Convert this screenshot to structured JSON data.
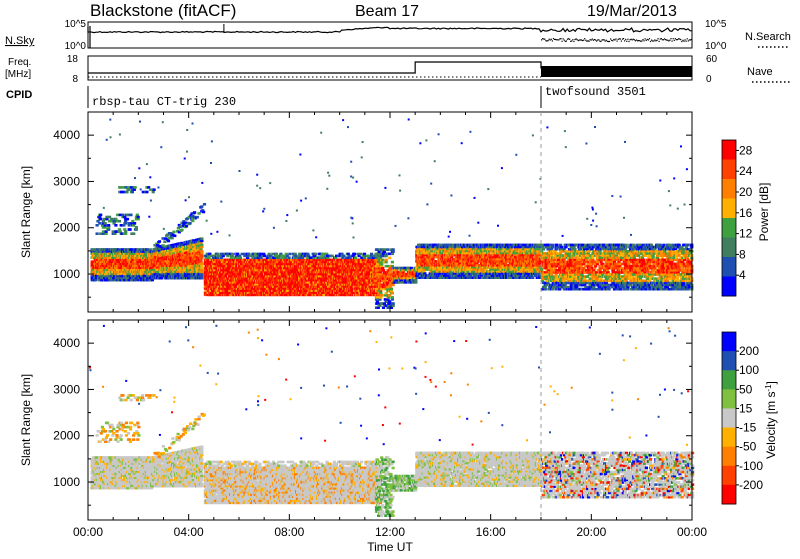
{
  "header": {
    "radar": "Blackstone (fitACF)",
    "beam": "Beam 17",
    "date": "19/Mar/2013"
  },
  "top_panel": {
    "left_label": "N.Sky",
    "left_ticks": [
      "10^5",
      "10^0"
    ],
    "right_ticks": [
      "10^5",
      "10^0"
    ],
    "right_label": "N.Search"
  },
  "freq_panel": {
    "left_label_1": "Freq.",
    "left_label_2": "[MHz]",
    "left_ticks": [
      "18",
      "8"
    ],
    "right_ticks": [
      "60",
      "0"
    ],
    "right_label": "Nave"
  },
  "cpid_panel": {
    "label": "CPID",
    "programs": [
      "rbsp-tau CT-trig 230",
      "twofsound 3501"
    ]
  },
  "colors": {
    "power": [
      "#0000ff",
      "#1f4fb0",
      "#3f7f5f",
      "#3fa040",
      "#ffb000",
      "#ff8000",
      "#ff4000",
      "#ff0000"
    ],
    "velocity": [
      "#ff0000",
      "#ff4000",
      "#ff8000",
      "#ffb000",
      "#c8c8c8",
      "#80c040",
      "#3fa040",
      "#1f4fb0",
      "#0000ff"
    ],
    "ground_scatter": "#c8c8c8"
  },
  "chart_data": [
    {
      "type": "heatmap",
      "panel": "power",
      "xlabel": "Time UT",
      "ylabel": "Slant Range [km]",
      "xlim": [
        "00:00",
        "24:00"
      ],
      "ylim": [
        180,
        4500
      ],
      "x_ticks": [
        "00:00",
        "04:00",
        "08:00",
        "12:00",
        "16:00",
        "20:00",
        "00:00"
      ],
      "y_ticks": [
        1000,
        2000,
        3000,
        4000
      ],
      "colorbar_label": "Power [dB]",
      "colorbar_ticks": [
        4,
        8,
        12,
        16,
        20,
        24,
        28
      ],
      "colorbar_range": [
        0,
        30
      ],
      "mode_change_time": "18:00"
    },
    {
      "type": "heatmap",
      "panel": "velocity",
      "xlabel": "Time UT",
      "ylabel": "Slant Range [km]",
      "xlim": [
        "00:00",
        "24:00"
      ],
      "ylim": [
        180,
        4500
      ],
      "x_ticks": [
        "00:00",
        "04:00",
        "08:00",
        "12:00",
        "16:00",
        "20:00",
        "00:00"
      ],
      "y_ticks": [
        1000,
        2000,
        3000,
        4000
      ],
      "colorbar_label": "Velocity [m s^-1]",
      "colorbar_ticks": [
        200,
        100,
        50,
        15,
        -15,
        -50,
        -100,
        -200
      ],
      "mode_change_time": "18:00"
    }
  ]
}
